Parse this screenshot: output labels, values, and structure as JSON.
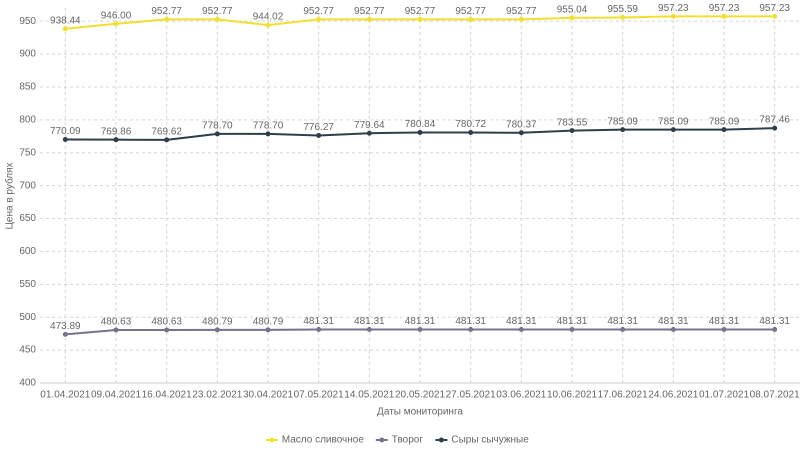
{
  "chart_data": {
    "type": "line",
    "x_label": "Даты мониторинга",
    "y_label": "Цена в рублях",
    "categories": [
      "01.04.2021",
      "09.04.2021",
      "16.04.2021",
      "23.02.2021",
      "30.04.2021",
      "07.05.2021",
      "14.05.2021",
      "20.05.2021",
      "27.05.2021",
      "03.06.2021",
      "10.06.2021",
      "17.06.2021",
      "24.06.2021",
      "01.07.2021",
      "08.07.2021"
    ],
    "series": [
      {
        "name": "Масло сливочное",
        "color": "#f0e030",
        "values": [
          938.44,
          946.0,
          952.77,
          952.77,
          944.02,
          952.77,
          952.77,
          952.77,
          952.77,
          952.77,
          955.04,
          955.59,
          957.23,
          957.23,
          957.23
        ],
        "value_labels": [
          "938.44",
          "946.00",
          "952.77",
          "952.77",
          "944.02",
          "952.77",
          "952.77",
          "952.77",
          "952.77",
          "952.77",
          "955.04",
          "955.59",
          "957.23",
          "957.23",
          "957.23"
        ]
      },
      {
        "name": "Творог",
        "color": "#77728f",
        "values": [
          473.89,
          480.63,
          480.63,
          480.79,
          480.79,
          481.31,
          481.31,
          481.31,
          481.31,
          481.31,
          481.31,
          481.31,
          481.31,
          481.31,
          481.31
        ],
        "value_labels": [
          "473.89",
          "480.63",
          "480.63",
          "480.79",
          "480.79",
          "481.31",
          "481.31",
          "481.31",
          "481.31",
          "481.31",
          "481.31",
          "481.31",
          "481.31",
          "481.31",
          "481.31"
        ]
      },
      {
        "name": "Сыры сычужные",
        "color": "#2e3f4a",
        "values": [
          770.09,
          769.86,
          769.62,
          778.7,
          778.7,
          776.27,
          779.64,
          780.84,
          780.72,
          780.37,
          783.55,
          785.09,
          785.09,
          785.09,
          787.46
        ],
        "value_labels": [
          "770.09",
          "769.86",
          "769.62",
          "778.70",
          "778.70",
          "776.27",
          "779.64",
          "780.84",
          "780.72",
          "780.37",
          "783.55",
          "785.09",
          "785.09",
          "785.09",
          "787.46"
        ]
      }
    ],
    "ylim": [
      400,
      970
    ],
    "yticks": [
      400,
      450,
      500,
      550,
      600,
      650,
      700,
      750,
      800,
      850,
      900,
      950
    ],
    "grid": true,
    "legend": "bottom"
  }
}
